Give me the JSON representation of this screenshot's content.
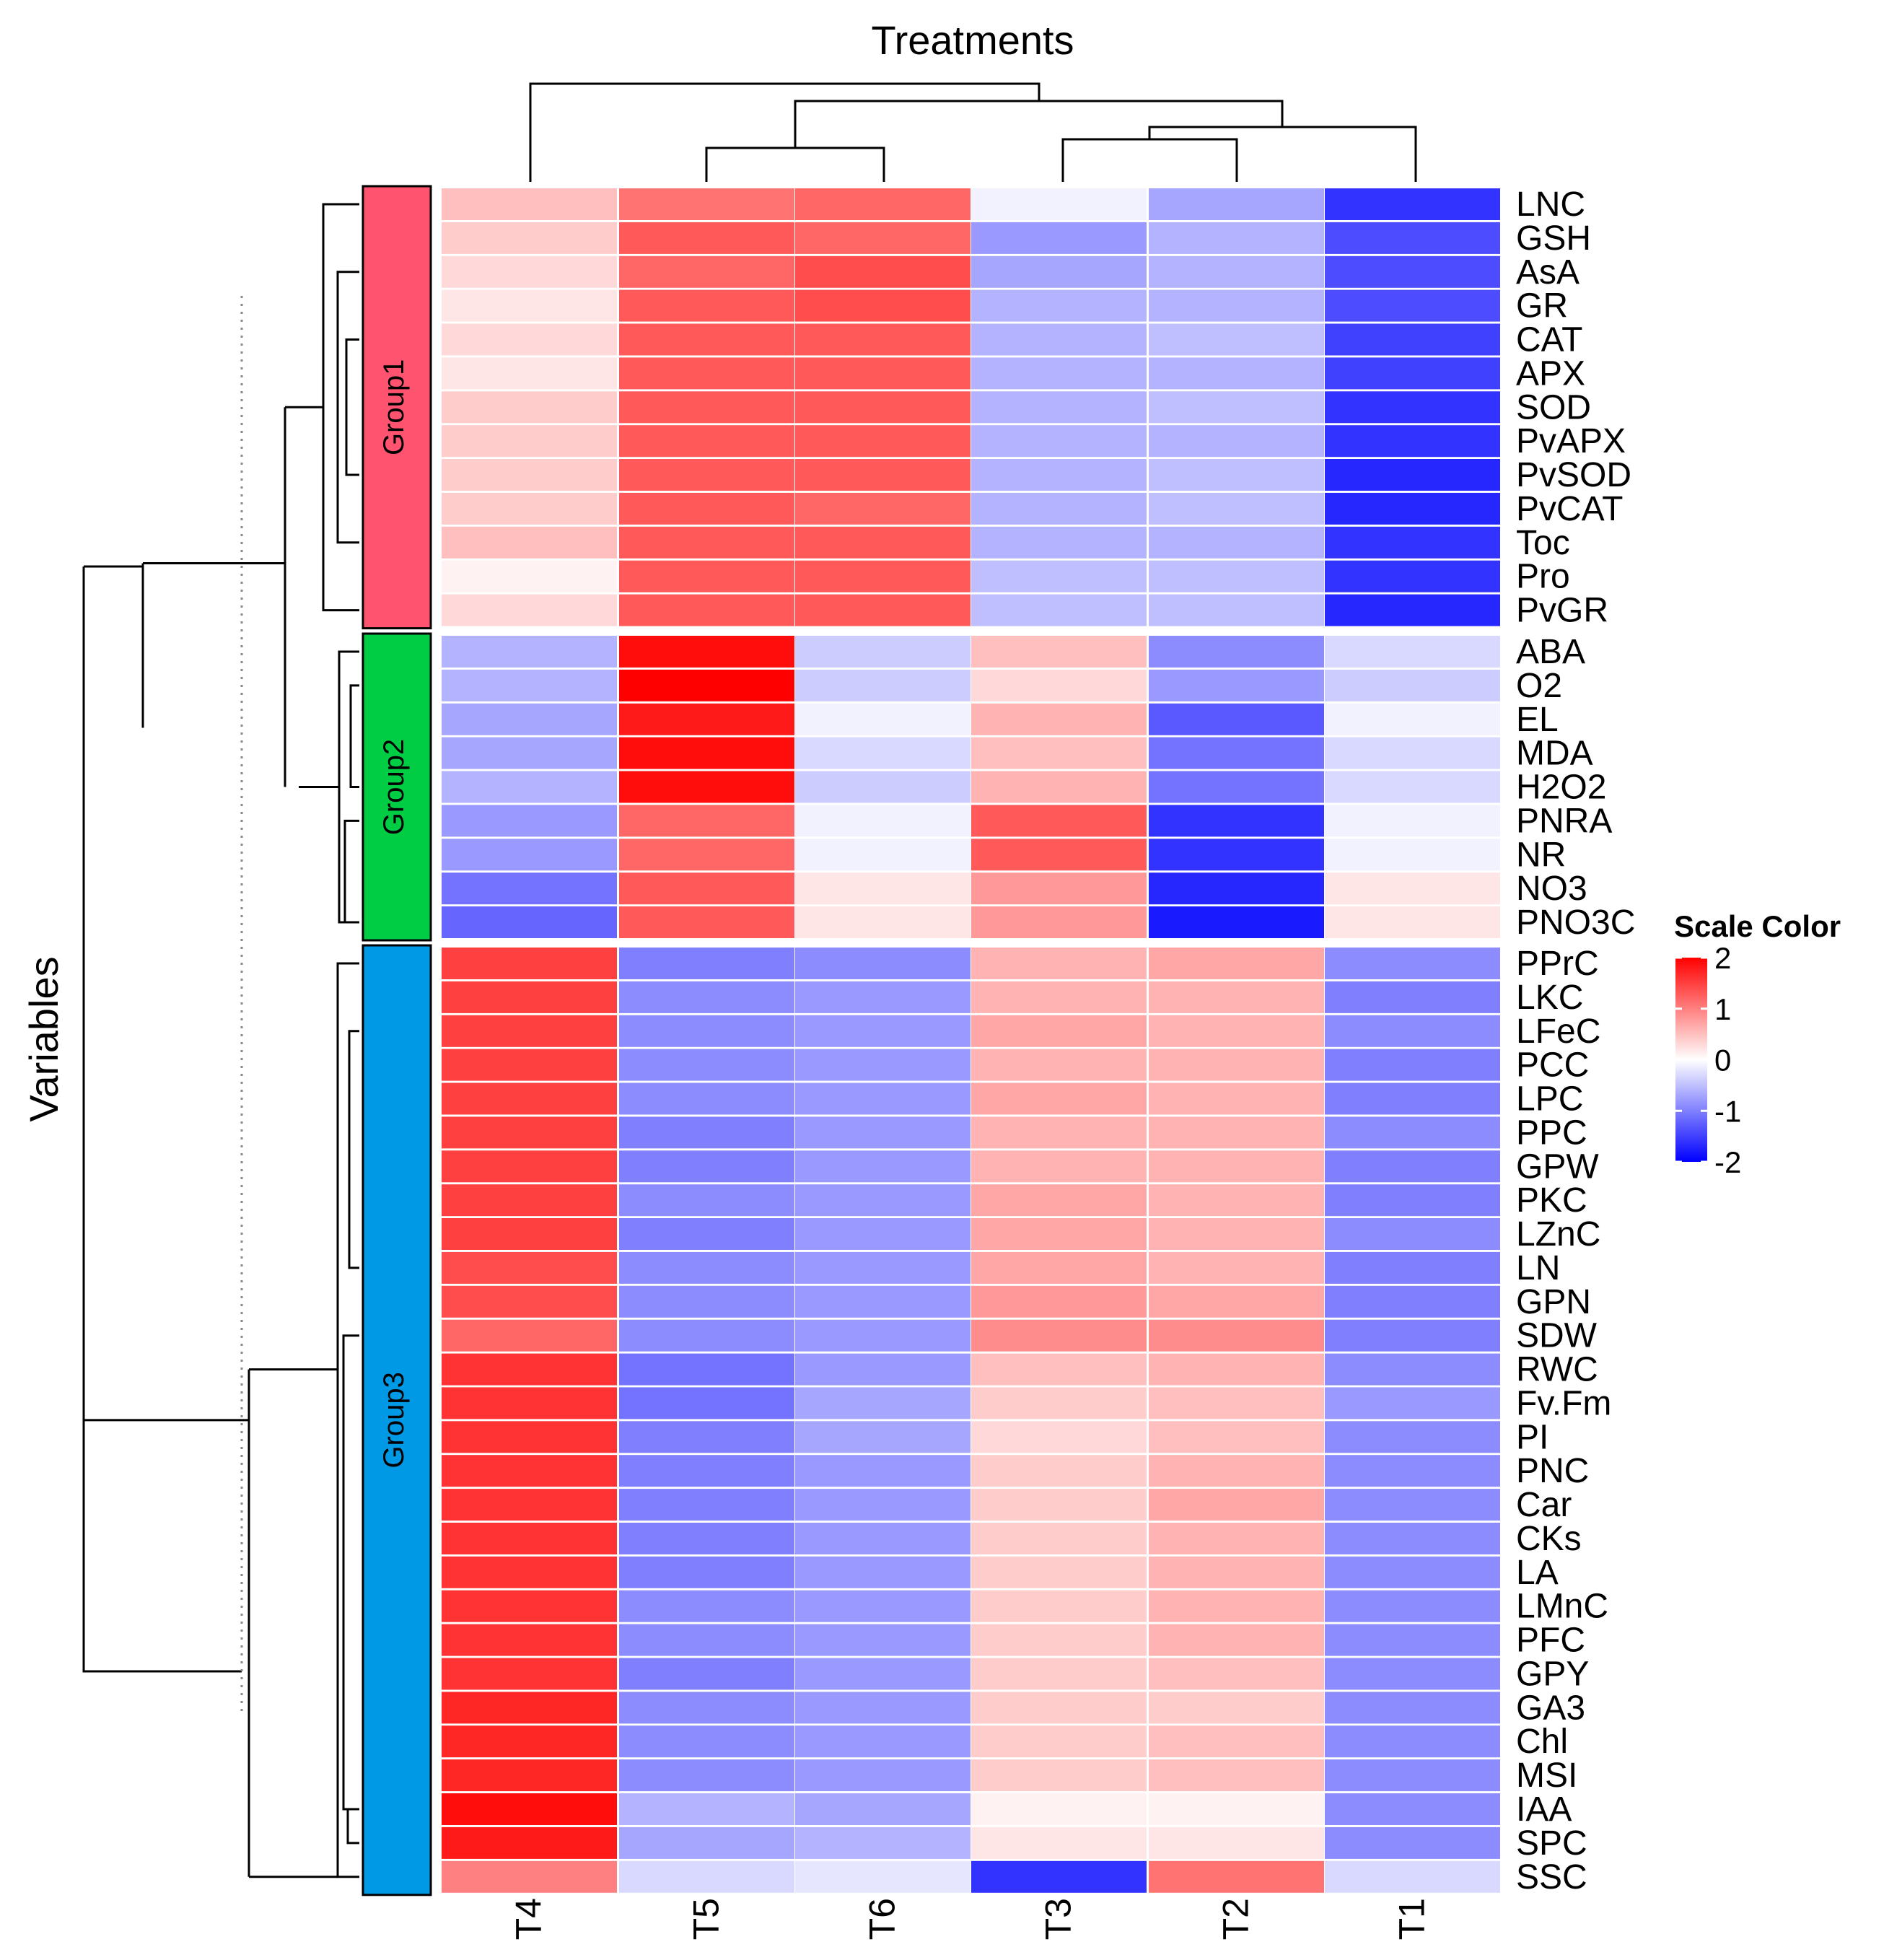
{
  "chart_data": {
    "type": "heatmap",
    "title": "Treatments",
    "ylabel": "Variables",
    "columns": [
      "T4",
      "T5",
      "T6",
      "T3",
      "T2",
      "T1"
    ],
    "rows": [
      "LNC",
      "GSH",
      "AsA",
      "GR",
      "CAT",
      "APX",
      "SOD",
      "PvAPX",
      "PvSOD",
      "PvCAT",
      "Toc",
      "Pro",
      "PvGR",
      "ABA",
      "O2",
      "EL",
      "MDA",
      "H2O2",
      "PNRA",
      "NR",
      "NO3",
      "PNO3C",
      "PPrC",
      "LKC",
      "LFeC",
      "PCC",
      "LPC",
      "PPC",
      "GPW",
      "PKC",
      "LZnC",
      "LN",
      "GPN",
      "SDW",
      "RWC",
      "Fv.Fm",
      "PI",
      "PNC",
      "Car",
      "CKs",
      "LA",
      "LMnC",
      "PFC",
      "GPY",
      "GA3",
      "Chl",
      "MSI",
      "IAA",
      "SPC",
      "SSC"
    ],
    "groups": [
      {
        "label": "Group1",
        "color": "#FF5370",
        "start": 0,
        "end": 12
      },
      {
        "label": "Group2",
        "color": "#00CC44",
        "start": 13,
        "end": 21
      },
      {
        "label": "Group3",
        "color": "#0099E6",
        "start": 22,
        "end": 49
      }
    ],
    "values": [
      [
        0.5,
        1.1,
        1.2,
        -0.1,
        -0.7,
        -1.6
      ],
      [
        0.4,
        1.3,
        1.2,
        -0.8,
        -0.6,
        -1.4
      ],
      [
        0.3,
        1.2,
        1.4,
        -0.7,
        -0.6,
        -1.4
      ],
      [
        0.2,
        1.3,
        1.4,
        -0.6,
        -0.6,
        -1.4
      ],
      [
        0.3,
        1.3,
        1.3,
        -0.6,
        -0.5,
        -1.5
      ],
      [
        0.2,
        1.3,
        1.3,
        -0.6,
        -0.6,
        -1.5
      ],
      [
        0.4,
        1.3,
        1.3,
        -0.6,
        -0.5,
        -1.6
      ],
      [
        0.4,
        1.3,
        1.3,
        -0.6,
        -0.6,
        -1.6
      ],
      [
        0.4,
        1.3,
        1.3,
        -0.6,
        -0.5,
        -1.7
      ],
      [
        0.4,
        1.3,
        1.2,
        -0.6,
        -0.5,
        -1.7
      ],
      [
        0.5,
        1.3,
        1.3,
        -0.6,
        -0.6,
        -1.6
      ],
      [
        0.1,
        1.3,
        1.3,
        -0.5,
        -0.5,
        -1.6
      ],
      [
        0.3,
        1.3,
        1.3,
        -0.5,
        -0.5,
        -1.7
      ],
      [
        -0.6,
        1.9,
        -0.4,
        0.5,
        -0.9,
        -0.3
      ],
      [
        -0.6,
        2.0,
        -0.4,
        0.3,
        -0.8,
        -0.4
      ],
      [
        -0.7,
        1.8,
        -0.1,
        0.6,
        -1.3,
        -0.1
      ],
      [
        -0.7,
        1.9,
        -0.3,
        0.5,
        -1.1,
        -0.3
      ],
      [
        -0.6,
        1.9,
        -0.4,
        0.6,
        -1.1,
        -0.3
      ],
      [
        -0.8,
        1.2,
        -0.1,
        1.3,
        -1.6,
        -0.1
      ],
      [
        -0.8,
        1.2,
        -0.1,
        1.3,
        -1.6,
        -0.1
      ],
      [
        -1.1,
        1.3,
        0.2,
        0.8,
        -1.7,
        0.2
      ],
      [
        -1.2,
        1.3,
        0.2,
        0.8,
        -1.8,
        0.2
      ],
      [
        1.5,
        -1.0,
        -0.9,
        0.6,
        0.7,
        -0.9
      ],
      [
        1.5,
        -0.9,
        -0.8,
        0.6,
        0.6,
        -1.0
      ],
      [
        1.5,
        -0.9,
        -0.8,
        0.7,
        0.6,
        -0.9
      ],
      [
        1.5,
        -0.9,
        -0.8,
        0.6,
        0.6,
        -1.0
      ],
      [
        1.5,
        -0.9,
        -0.8,
        0.7,
        0.6,
        -1.0
      ],
      [
        1.5,
        -1.0,
        -0.8,
        0.6,
        0.6,
        -0.9
      ],
      [
        1.5,
        -1.0,
        -0.8,
        0.6,
        0.6,
        -1.0
      ],
      [
        1.5,
        -0.9,
        -0.8,
        0.7,
        0.6,
        -1.0
      ],
      [
        1.5,
        -1.0,
        -0.8,
        0.7,
        0.6,
        -0.9
      ],
      [
        1.4,
        -0.9,
        -0.8,
        0.7,
        0.6,
        -1.0
      ],
      [
        1.4,
        -0.9,
        -0.8,
        0.8,
        0.7,
        -1.0
      ],
      [
        1.2,
        -0.9,
        -0.8,
        0.9,
        0.9,
        -1.0
      ],
      [
        1.6,
        -1.1,
        -0.8,
        0.5,
        0.6,
        -0.9
      ],
      [
        1.6,
        -1.1,
        -0.7,
        0.4,
        0.5,
        -0.8
      ],
      [
        1.6,
        -1.0,
        -0.7,
        0.3,
        0.5,
        -0.9
      ],
      [
        1.6,
        -1.0,
        -0.8,
        0.4,
        0.6,
        -0.9
      ],
      [
        1.6,
        -1.0,
        -0.8,
        0.4,
        0.7,
        -0.9
      ],
      [
        1.6,
        -1.0,
        -0.8,
        0.4,
        0.6,
        -0.9
      ],
      [
        1.6,
        -1.0,
        -0.8,
        0.4,
        0.6,
        -0.9
      ],
      [
        1.6,
        -0.9,
        -0.8,
        0.4,
        0.6,
        -0.9
      ],
      [
        1.6,
        -0.9,
        -0.8,
        0.4,
        0.6,
        -0.9
      ],
      [
        1.6,
        -1.0,
        -0.8,
        0.4,
        0.5,
        -0.9
      ],
      [
        1.7,
        -0.9,
        -0.8,
        0.4,
        0.4,
        -0.9
      ],
      [
        1.7,
        -0.9,
        -0.8,
        0.4,
        0.5,
        -0.9
      ],
      [
        1.7,
        -0.9,
        -0.8,
        0.4,
        0.5,
        -0.9
      ],
      [
        1.9,
        -0.6,
        -0.7,
        0.1,
        0.1,
        -0.9
      ],
      [
        1.8,
        -0.7,
        -0.6,
        0.2,
        0.2,
        -0.9
      ],
      [
        1.0,
        -0.3,
        -0.2,
        -1.6,
        1.1,
        -0.3
      ]
    ],
    "color_scale": {
      "title": "Scale Color",
      "range": [
        -2,
        2
      ],
      "ticks": [
        2,
        1,
        0,
        -1,
        -2
      ],
      "low": "#0000FF",
      "mid": "#FFFFFF",
      "high": "#FF0000"
    }
  }
}
